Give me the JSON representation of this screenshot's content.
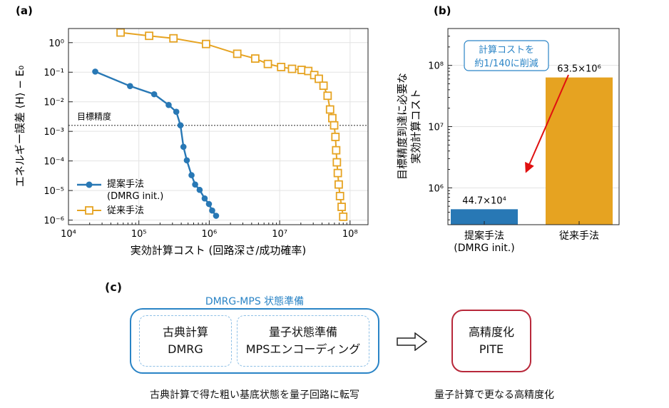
{
  "panel_labels": {
    "a": "(a)",
    "b": "(b)",
    "c": "(c)"
  },
  "colors": {
    "proposed": "#2878b5",
    "conventional": "#e6a321",
    "arrow": "#e01010",
    "annotation": "#2a84c6",
    "pite": "#b8283a"
  },
  "chart_data": [
    {
      "type": "line",
      "xlabel": "実効計算コスト (回路深さ/成功確率)",
      "ylabel": "エネルギー誤差 ⟨H⟩ − E₀",
      "xscale": "log",
      "yscale": "log",
      "xlim": [
        10000,
        180000000
      ],
      "ylim": [
        7e-07,
        3
      ],
      "x_ticks": [
        10000,
        100000,
        1000000,
        10000000,
        100000000
      ],
      "x_tick_labels": [
        "10⁴",
        "10⁵",
        "10⁶",
        "10⁷",
        "10⁸"
      ],
      "y_ticks": [
        1e-06,
        1e-05,
        0.0001,
        0.001,
        0.01,
        0.1,
        1
      ],
      "y_tick_labels": [
        "10⁻⁶",
        "10⁻⁵",
        "10⁻⁴",
        "10⁻³",
        "10⁻²",
        "10⁻¹",
        "10⁰"
      ],
      "grid": true,
      "legend_position": "bottom-left",
      "threshold": {
        "value": 0.0016,
        "label": "目標精度"
      },
      "series": [
        {
          "name": "提案手法\n(DMRG init.)",
          "marker": "circle",
          "x": [
            24000,
            75000,
            165000,
            265000,
            340000,
            390000,
            430000,
            480000,
            560000,
            630000,
            730000,
            860000,
            990000,
            1100000,
            1250000
          ],
          "y": [
            0.105,
            0.034,
            0.018,
            0.0078,
            0.0046,
            0.0016,
            0.0003,
            0.000105,
            3.3e-05,
            1.6e-05,
            1.05e-05,
            5.4e-06,
            3.5e-06,
            2.1e-06,
            1.4e-06
          ]
        },
        {
          "name": "従来手法",
          "marker": "square",
          "x": [
            55000,
            140000,
            310000,
            900000,
            2500000,
            4500000,
            6800000,
            10500000,
            15000000,
            20500000,
            25500000,
            31000000,
            36000000,
            42000000,
            48000000,
            52000000,
            56000000,
            59500000,
            62000000,
            63500000,
            65000000,
            67000000,
            69000000,
            72000000,
            76000000,
            80000000
          ],
          "y": [
            2.2,
            1.7,
            1.4,
            0.9,
            0.42,
            0.29,
            0.19,
            0.15,
            0.13,
            0.12,
            0.11,
            0.08,
            0.06,
            0.035,
            0.016,
            0.0055,
            0.0028,
            0.0016,
            0.00065,
            0.00023,
            9e-05,
            3.9e-05,
            1.6e-05,
            6.5e-06,
            2.8e-06,
            1.3e-06
          ]
        }
      ]
    },
    {
      "type": "bar",
      "ylabel": "目標精度到達に必要な\n実効計算コスト",
      "yscale": "log",
      "ylim": [
        250000,
        400000000
      ],
      "y_ticks": [
        1000000,
        10000000,
        100000000
      ],
      "y_tick_labels": [
        "10⁶",
        "10⁷",
        "10⁸"
      ],
      "grid": true,
      "categories": [
        "提案手法\n(DMRG init.)",
        "従来手法"
      ],
      "values": [
        447000,
        63500000
      ],
      "value_labels": [
        "44.7×10⁴",
        "63.5×10⁶"
      ],
      "annotation": "計算コストを\n約1/140に削減"
    }
  ],
  "diagram": {
    "group_title": "DMRG-MPS 状態準備",
    "left_box": {
      "line1": "古典計算",
      "line2": "DMRG"
    },
    "middle_box": {
      "line1": "量子状態準備",
      "line2": "MPSエンコーディング"
    },
    "right_box": {
      "line1": "高精度化",
      "line2": "PITE"
    },
    "caption_left": "古典計算で得た粗い基底状態を量子回路に転写",
    "caption_right": "量子計算で更なる高精度化"
  }
}
